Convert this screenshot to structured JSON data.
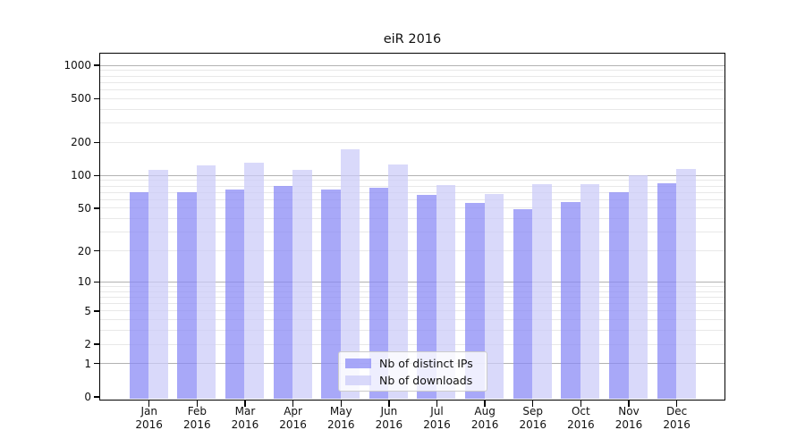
{
  "chart_data": {
    "type": "bar",
    "title": "eiR 2016",
    "categories": [
      "Jan",
      "Feb",
      "Mar",
      "Apr",
      "May",
      "Jun",
      "Jul",
      "Aug",
      "Sep",
      "Oct",
      "Nov",
      "Dec"
    ],
    "year_label": "2016",
    "series": [
      {
        "name": "Nb of distinct IPs",
        "color": "#8686f5",
        "values": [
          70,
          70,
          74,
          80,
          74,
          76,
          66,
          55,
          49,
          56,
          70,
          84
        ]
      },
      {
        "name": "Nb of downloads",
        "color": "#cacaf8",
        "values": [
          112,
          123,
          130,
          112,
          172,
          125,
          81,
          67,
          82,
          82,
          100,
          113
        ]
      }
    ],
    "yscale": "log1p",
    "ytick_labels": [
      0,
      1,
      2,
      5,
      10,
      20,
      50,
      100,
      200,
      500,
      1000
    ],
    "major_grid_values": [
      1,
      10,
      100,
      1000
    ],
    "ylim": [
      0,
      1280
    ],
    "grid": true,
    "legend_position": "lower center"
  }
}
